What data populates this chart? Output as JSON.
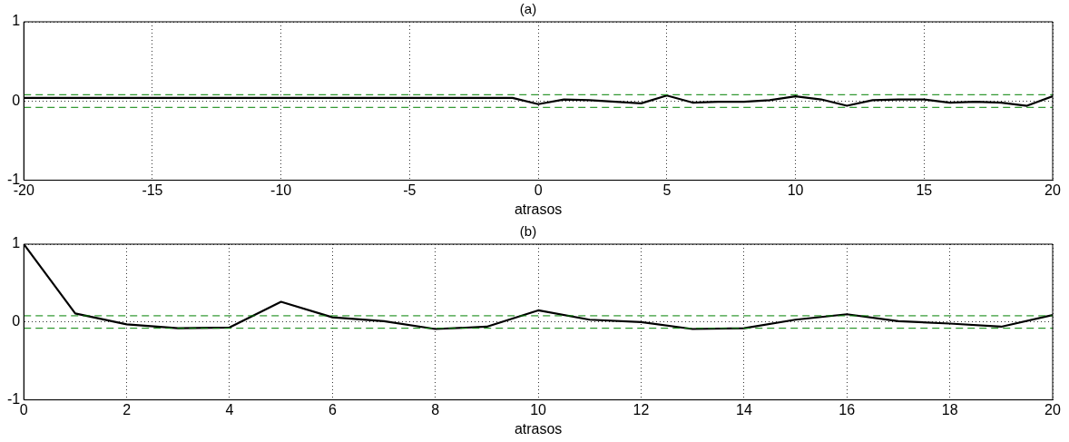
{
  "chart_data": [
    {
      "type": "line",
      "title": "(a)",
      "xlabel": "atrasos",
      "xlim": [
        -20,
        20
      ],
      "xticks": [
        -20,
        -15,
        -10,
        -5,
        0,
        5,
        10,
        15,
        20
      ],
      "ylim": [
        -1,
        1
      ],
      "yticks": [
        -1,
        0,
        1
      ],
      "grid": true,
      "marker": "none",
      "line_style": "solid",
      "series": [
        {
          "color": "#000000",
          "x": [
            -20,
            -19,
            -18,
            -17,
            -16,
            -15,
            -14,
            -13,
            -12,
            -11,
            -10,
            -9,
            -8,
            -7,
            -6,
            -5,
            -4,
            -3,
            -2,
            -1,
            0,
            1,
            2,
            3,
            4,
            5,
            6,
            7,
            8,
            9,
            10,
            11,
            12,
            13,
            14,
            15,
            16,
            17,
            18,
            19,
            20
          ],
          "values": [
            0.04,
            0.04,
            0.04,
            0.04,
            0.04,
            0.04,
            0.04,
            0.04,
            0.04,
            0.04,
            0.04,
            0.04,
            0.04,
            0.04,
            0.04,
            0.04,
            0.04,
            0.04,
            0.04,
            0.04,
            -0.04,
            0.02,
            0.01,
            -0.01,
            -0.03,
            0.07,
            -0.02,
            -0.01,
            -0.01,
            0.01,
            0.06,
            0.02,
            -0.06,
            0.01,
            0.02,
            0.02,
            -0.02,
            -0.01,
            -0.02,
            -0.06,
            0.06
          ]
        }
      ],
      "ref_lines": [
        {
          "axis": "y",
          "value": 0.08,
          "color": "#008000",
          "line_style": "dashed"
        },
        {
          "axis": "y",
          "value": -0.08,
          "color": "#008000",
          "line_style": "dashed"
        }
      ]
    },
    {
      "type": "line",
      "title": "(b)",
      "xlabel": "atrasos",
      "xlim": [
        0,
        20
      ],
      "xticks": [
        0,
        2,
        4,
        6,
        8,
        10,
        12,
        14,
        16,
        18,
        20
      ],
      "ylim": [
        -1,
        1
      ],
      "yticks": [
        -1,
        0,
        1
      ],
      "grid": true,
      "marker": "none",
      "line_style": "solid",
      "series": [
        {
          "color": "#000000",
          "x": [
            0,
            1,
            2,
            3,
            4,
            5,
            6,
            7,
            8,
            9,
            10,
            11,
            12,
            13,
            14,
            15,
            16,
            17,
            18,
            19,
            20
          ],
          "values": [
            1,
            0.11,
            -0.03,
            -0.08,
            -0.07,
            0.26,
            0.06,
            0.01,
            -0.09,
            -0.06,
            0.15,
            0.03,
            0.0,
            -0.09,
            -0.08,
            0.03,
            0.1,
            0.01,
            -0.02,
            -0.06,
            0.09
          ]
        }
      ],
      "ref_lines": [
        {
          "axis": "y",
          "value": 0.08,
          "color": "#008000",
          "line_style": "dashed"
        },
        {
          "axis": "y",
          "value": -0.08,
          "color": "#008000",
          "line_style": "dashed"
        }
      ]
    }
  ]
}
